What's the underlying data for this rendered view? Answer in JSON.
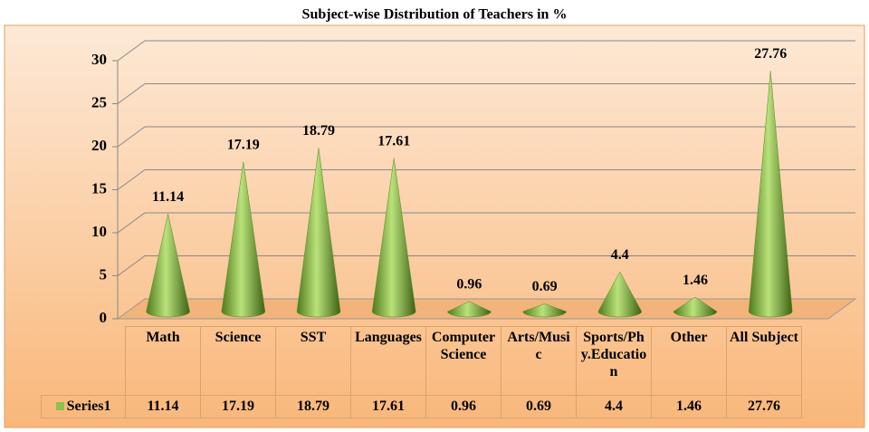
{
  "chart_data": {
    "type": "cone",
    "title": "Subject-wise Distribution of Teachers in %",
    "categories": [
      "Math",
      "Science",
      "SST",
      "Languages",
      "Computer Science",
      "Arts/Music",
      "Sports/Phy.Education",
      "Other",
      "All Subject"
    ],
    "series": [
      {
        "name": "Series1",
        "color": "#8dc24b",
        "values": [
          11.14,
          17.19,
          18.79,
          17.61,
          0.96,
          0.69,
          4.4,
          1.46,
          27.76
        ]
      }
    ],
    "ylim": [
      0,
      30
    ],
    "yticks": [
      0,
      5,
      10,
      15,
      20,
      25,
      30
    ],
    "grid": true
  }
}
